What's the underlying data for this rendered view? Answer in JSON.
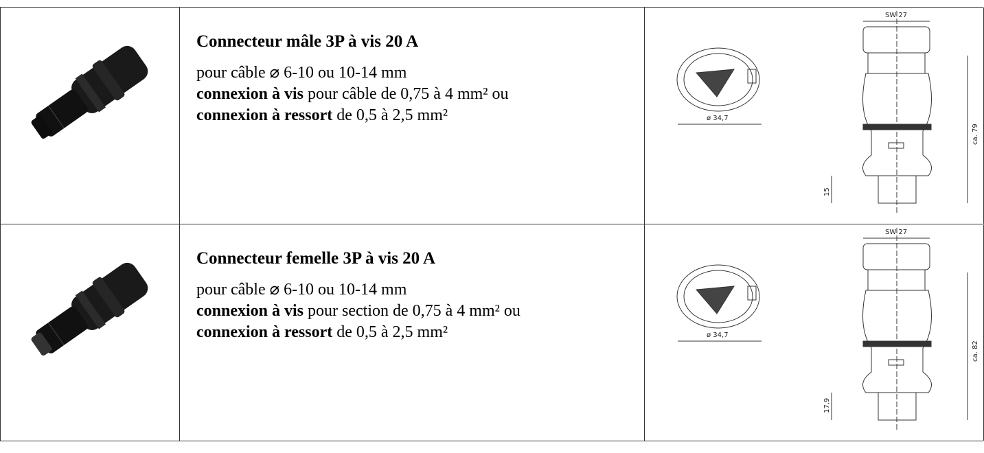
{
  "table": {
    "rows": [
      {
        "title": "Connecteur mâle 3P à vis 20 A",
        "line1": "pour câble ⌀ 6-10 ou 10-14 mm",
        "line2": {
          "bold": "connexion à vis",
          "rest": "pour câble de 0,75 à 4 mm² ou"
        },
        "line3": {
          "bold": "connexion à ressort",
          "rest": "de 0,5 à 2,5 mm²"
        },
        "drawing": {
          "width": "SW 27",
          "diameter": "ø 34,7",
          "length": "ca. 79",
          "pin": "15"
        }
      },
      {
        "title": "Connecteur femelle 3P à vis 20 A",
        "line1": "pour câble ⌀ 6-10 ou 10-14 mm",
        "line2": {
          "bold": "connexion à vis",
          "rest": "pour section de 0,75 à 4 mm² ou"
        },
        "line3": {
          "bold": "connexion à ressort",
          "rest": "de 0,5 à 2,5 mm²"
        },
        "drawing": {
          "width": "SW 27",
          "diameter": "ø 34,7",
          "length": "ca. 82",
          "pin": "17,9"
        }
      }
    ]
  }
}
